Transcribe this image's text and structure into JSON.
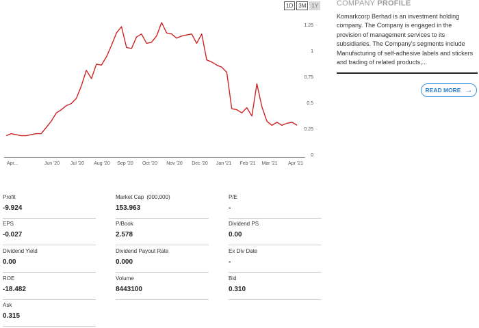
{
  "range_buttons": [
    {
      "label": "1D",
      "active": false
    },
    {
      "label": "3M",
      "active": false
    },
    {
      "label": "1Y",
      "active": true
    }
  ],
  "profile": {
    "title_light": "COMPANY",
    "title_bold": "PROFILE",
    "text": "Komarkcorp Berhad is an investment holding company. The Company is engaged in the provision of management services to its subsidiaries. The Company's segments include Manufacturing of self-adhesive labels and stickers and trading of related products,...",
    "read_more": "READ MORE"
  },
  "colors": {
    "line": "#cc2222",
    "accent": "#2a7cc7",
    "grid_text": "#555555"
  },
  "chart_data": {
    "type": "line",
    "title": "",
    "xlabel": "",
    "ylabel": "",
    "ylim": [
      0,
      1.375
    ],
    "y_ticks": [
      "0",
      "0.25",
      "0.5",
      "0.75",
      "1",
      "1.25"
    ],
    "x_ticks": [
      "Apr...",
      "Jun '20",
      "Jul '20",
      "Aug '20",
      "Sep '20",
      "Oct '20",
      "Nov '20",
      "Dec '20",
      "Jan '21",
      "Feb '21",
      "Mar '21",
      "Apr '21"
    ],
    "grid": false,
    "series": [
      {
        "values": [
          0.18,
          0.2,
          0.19,
          0.18,
          0.18,
          0.19,
          0.2,
          0.2,
          0.26,
          0.32,
          0.4,
          0.43,
          0.47,
          0.49,
          0.54,
          0.66,
          0.81,
          0.73,
          0.87,
          0.86,
          0.94,
          1.05,
          1.17,
          1.23,
          1.03,
          1.02,
          1.13,
          1.16,
          1.07,
          1.08,
          1.14,
          1.27,
          1.17,
          1.16,
          1.12,
          1.14,
          1.15,
          1.16,
          1.07,
          1.16,
          0.91,
          0.89,
          0.86,
          0.84,
          0.79,
          0.44,
          0.43,
          0.4,
          0.45,
          0.37,
          0.68,
          0.46,
          0.32,
          0.28,
          0.31,
          0.28,
          0.3,
          0.31,
          0.28
        ]
      }
    ]
  },
  "stats": [
    {
      "label": "Profit",
      "value": "-9.924"
    },
    {
      "label": "Market Cap",
      "unit": "(000,000)",
      "value": "153.963"
    },
    {
      "label": "P/E",
      "value": "-"
    },
    {
      "label": "EPS",
      "value": "-0.027"
    },
    {
      "label": "P/Book",
      "value": "2.578"
    },
    {
      "label": "Dividend PS",
      "value": "0.00"
    },
    {
      "label": "Dividend Yield",
      "value": "0.00"
    },
    {
      "label": "Dividend Payout Rate",
      "value": "0.000"
    },
    {
      "label": "Ex Div Date",
      "value": "-"
    },
    {
      "label": "ROE",
      "value": "-18.482"
    },
    {
      "label": "Volume",
      "value": "8443100"
    },
    {
      "label": "Bid",
      "value": "0.310"
    },
    {
      "label": "Ask",
      "value": "0.315"
    }
  ]
}
